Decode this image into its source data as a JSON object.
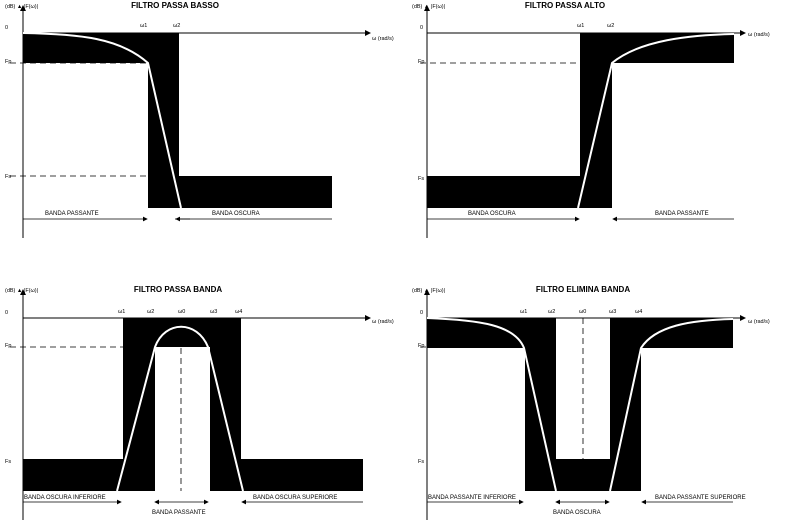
{
  "panels": {
    "lowpass": {
      "title": "FILTRO PASSA BASSO",
      "ylabel": "(dB) ▲ |F(ω)|",
      "xlabel": "ω (rad/s)",
      "origin": "0",
      "fp": "Fp",
      "fs": "Fs",
      "w1": "ω1",
      "w2": "ω2",
      "band_left": "BANDA PASSANTE",
      "band_right": "BANDA OSCURA"
    },
    "highpass": {
      "title": "FILTRO PASSA ALTO",
      "ylabel": "(dB) ▲ |F(ω)|",
      "xlabel": "ω (rad/s)",
      "origin": "0",
      "fp": "Fp",
      "fs": "Fs",
      "w1": "ω1",
      "w2": "ω2",
      "band_left": "BANDA OSCURA",
      "band_right": "BANDA PASSANTE"
    },
    "bandpass": {
      "title": "FILTRO PASSA BANDA",
      "ylabel": "(dB) ▲ |F(ω)|",
      "xlabel": "ω (rad/s)",
      "origin": "0",
      "fp": "Fp",
      "fs": "Fs",
      "w0": "ω0",
      "w1": "ω1",
      "w2": "ω2",
      "w3": "ω3",
      "w4": "ω4",
      "band_left": "BANDA OSCURA INFERIORE",
      "band_mid": "BANDA PASSANTE",
      "band_right": "BANDA OSCURA SUPERIORE"
    },
    "bandstop": {
      "title": "FILTRO ELIMINA BANDA",
      "ylabel": "(dB) ▲ |F(ω)|",
      "xlabel": "ω (rad/s)",
      "origin": "0",
      "fp": "Fp",
      "fs": "Fs",
      "w0": "ω0",
      "w1": "ω1",
      "w2": "ω2",
      "w3": "ω3",
      "w4": "ω4",
      "band_left": "BANDA PASSANTE INFERIORE",
      "band_mid": "BANDA OSCURA",
      "band_right": "BANDA PASSANTE SUPERIORE"
    }
  }
}
